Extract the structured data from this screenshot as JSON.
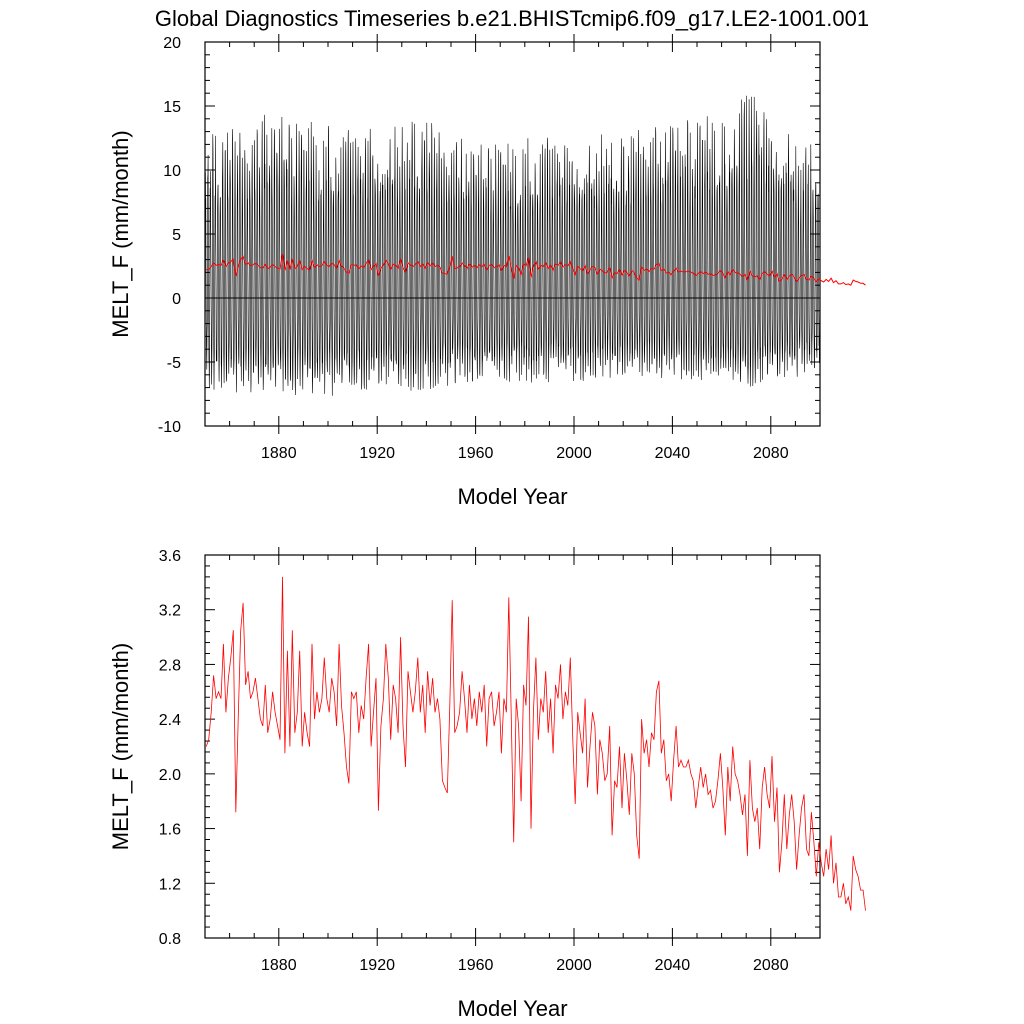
{
  "title": "Global Diagnostics Timeseries b.e21.BHISTcmip6.f09_g17.LE2-1001.001",
  "colors": {
    "monthly_series": "#000000",
    "annual_series": "#ff0000",
    "axes": "#000000",
    "background": "#ffffff"
  },
  "chart_data": [
    {
      "type": "line",
      "title": "",
      "xlabel": "Model Year",
      "ylabel": "MELT_F (mm/month)",
      "xlim": [
        1850,
        2100
      ],
      "ylim": [
        -10,
        20
      ],
      "x_ticks": [
        1880,
        1920,
        1960,
        2000,
        2040,
        2080
      ],
      "x_tick_labels": [
        "1880",
        "1920",
        "1960",
        "2000",
        "2040",
        "2080"
      ],
      "y_ticks": [
        -10,
        -5,
        0,
        5,
        10,
        15,
        20
      ],
      "y_tick_labels": [
        "-10",
        "-5",
        "0",
        "5",
        "10",
        "15",
        "20"
      ],
      "reference_line_y": 0,
      "grid": false,
      "legend": "none",
      "series": [
        {
          "color": "#000000",
          "description_type": "monthly",
          "envelope_years": [
            1850,
            1880,
            1900,
            1920,
            1940,
            1960,
            1980,
            2000,
            2020,
            2040,
            2060,
            2072,
            2080,
            2100
          ],
          "envelope_max": [
            13.5,
            15.3,
            14.0,
            14.0,
            14.5,
            12.5,
            13.0,
            13.0,
            13.5,
            14.5,
            14.8,
            17.1,
            14.5,
            12.5
          ],
          "envelope_min": [
            -7.5,
            -8.0,
            -8.0,
            -7.5,
            -7.5,
            -7.0,
            -7.0,
            -6.8,
            -6.5,
            -6.5,
            -7.0,
            -7.5,
            -6.5,
            -6.5
          ],
          "note_min_trough_inner": -2.0
        },
        {
          "color": "#ff0000",
          "description_type": "annual",
          "use_annual_values": true
        }
      ]
    },
    {
      "type": "line",
      "title": "",
      "xlabel": "Model Year",
      "ylabel": "MELT_F (mm/month)",
      "xlim": [
        1850,
        2100
      ],
      "ylim": [
        0.8,
        3.6
      ],
      "x_ticks": [
        1880,
        1920,
        1960,
        2000,
        2040,
        2080
      ],
      "x_tick_labels": [
        "1880",
        "1920",
        "1960",
        "2000",
        "2040",
        "2080"
      ],
      "y_ticks": [
        0.8,
        1.2,
        1.6,
        2.0,
        2.4,
        2.8,
        3.2,
        3.6
      ],
      "y_tick_labels": [
        "0.8",
        "1.2",
        "1.6",
        "2.0",
        "2.4",
        "2.8",
        "3.2",
        "3.6"
      ],
      "grid": false,
      "legend": "none",
      "series": [
        {
          "color": "#ff0000",
          "description_type": "annual",
          "x_start": 1850,
          "x_step": 1,
          "values": [
            2.2,
            2.25,
            2.45,
            2.72,
            2.55,
            2.6,
            2.55,
            2.95,
            2.45,
            2.7,
            2.85,
            3.05,
            1.72,
            2.4,
            3.05,
            3.25,
            2.65,
            2.75,
            2.55,
            2.6,
            2.7,
            2.55,
            2.4,
            2.35,
            2.65,
            2.3,
            2.4,
            2.6,
            2.45,
            2.35,
            2.25,
            3.44,
            2.15,
            2.9,
            2.2,
            3.05,
            2.3,
            2.45,
            2.9,
            2.2,
            2.45,
            2.3,
            2.2,
            2.95,
            2.4,
            2.6,
            2.45,
            2.55,
            2.85,
            2.55,
            2.45,
            2.7,
            2.6,
            2.35,
            2.95,
            2.5,
            2.3,
            2.05,
            1.93,
            2.6,
            2.55,
            2.6,
            2.3,
            2.5,
            2.4,
            2.7,
            2.95,
            2.2,
            2.45,
            2.7,
            1.73,
            2.35,
            2.55,
            2.95,
            2.7,
            2.25,
            2.65,
            2.55,
            2.3,
            3.0,
            2.35,
            2.05,
            2.75,
            2.6,
            2.45,
            2.6,
            2.85,
            2.45,
            2.65,
            2.3,
            2.75,
            2.5,
            2.7,
            2.45,
            2.55,
            2.4,
            1.95,
            1.9,
            1.86,
            2.5,
            3.27,
            2.3,
            2.35,
            2.45,
            2.75,
            2.55,
            2.3,
            2.65,
            2.4,
            2.55,
            2.35,
            2.6,
            2.45,
            2.65,
            2.2,
            2.55,
            2.6,
            2.35,
            2.45,
            2.6,
            2.15,
            2.55,
            2.45,
            3.29,
            2.4,
            1.5,
            2.55,
            2.35,
            1.8,
            2.65,
            2.5,
            3.15,
            1.6,
            2.45,
            2.85,
            2.25,
            2.55,
            2.45,
            2.75,
            2.3,
            2.55,
            2.15,
            2.65,
            2.55,
            2.8,
            2.4,
            2.6,
            2.5,
            2.85,
            2.25,
            1.78,
            2.45,
            2.3,
            2.15,
            2.55,
            1.9,
            2.2,
            2.45,
            2.35,
            1.85,
            2.25,
            2.15,
            1.95,
            2.0,
            2.35,
            1.55,
            1.95,
            1.9,
            2.2,
            1.75,
            2.15,
            1.95,
            1.7,
            2.15,
            2.0,
            1.55,
            1.38,
            2.4,
            2.15,
            2.25,
            2.05,
            2.3,
            2.25,
            2.6,
            2.68,
            2.15,
            2.25,
            1.95,
            2.0,
            1.8,
            2.1,
            2.35,
            2.05,
            2.1,
            2.05,
            2.05,
            2.1,
            2.0,
            1.95,
            1.75,
            1.9,
            2.05,
            1.9,
            2.0,
            1.85,
            1.88,
            1.75,
            1.8,
            1.95,
            2.15,
            1.9,
            1.55,
            2.05,
            1.8,
            2.2,
            2.0,
            1.95,
            1.85,
            1.7,
            1.85,
            1.4,
            2.1,
            1.75,
            1.65,
            1.75,
            1.45,
            1.9,
            2.05,
            1.85,
            1.75,
            2.13,
            1.65,
            1.9,
            1.28,
            1.5,
            1.85,
            1.45,
            1.7,
            1.85,
            1.65,
            1.3,
            1.55,
            1.75,
            1.85,
            1.45,
            1.4,
            1.72,
            1.5,
            1.25,
            1.5,
            1.35,
            1.25,
            1.45,
            1.3,
            1.55,
            1.2,
            1.35,
            1.1,
            1.1,
            1.2,
            1.05,
            1.1,
            1.0,
            1.4,
            1.3,
            1.25,
            1.15,
            1.15,
            1.0
          ]
        }
      ]
    }
  ]
}
